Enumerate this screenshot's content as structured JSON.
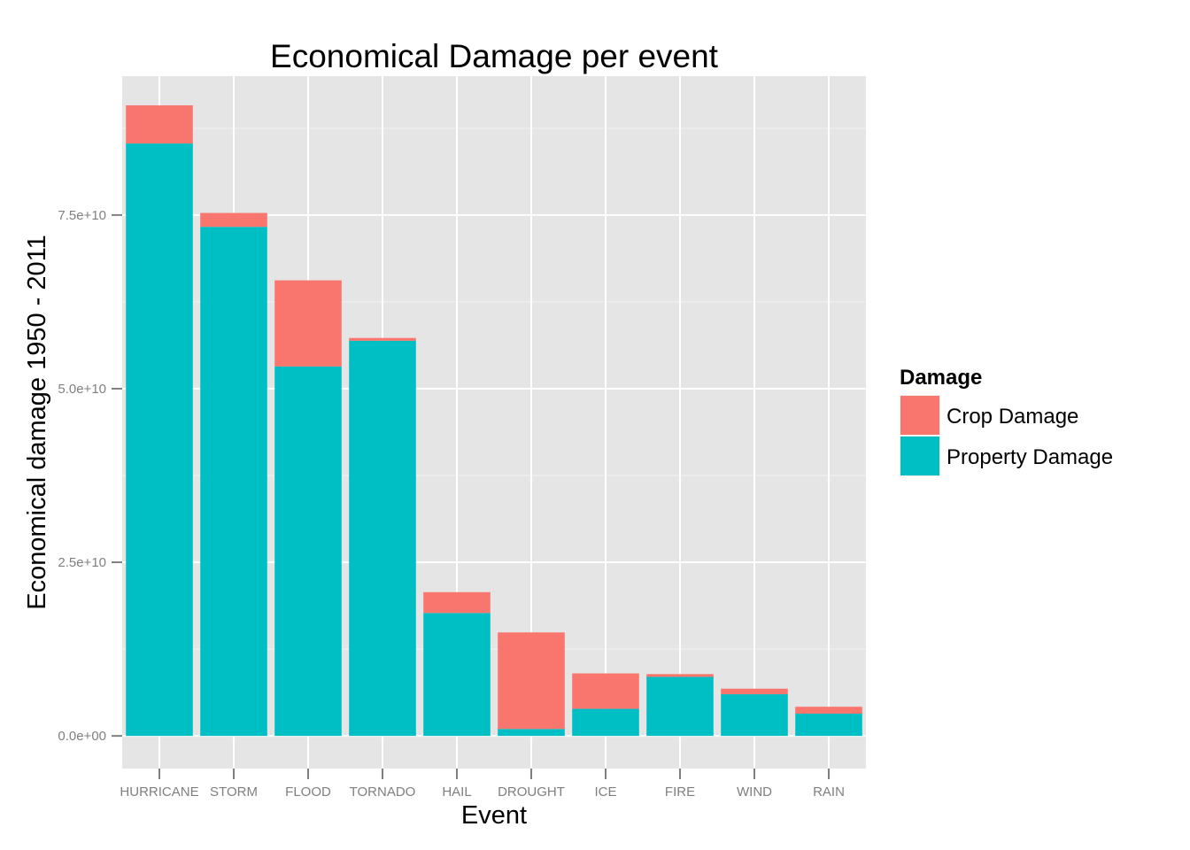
{
  "chart_data": {
    "type": "bar",
    "stacked": true,
    "title": "Economical Damage per event",
    "xlabel": "Event",
    "ylabel": "Economical damage 1950 - 2011",
    "categories": [
      "HURRICANE",
      "STORM",
      "FLOOD",
      "TORNADO",
      "HAIL",
      "DROUGHT",
      "ICE",
      "FIRE",
      "WIND",
      "RAIN"
    ],
    "series": [
      {
        "name": "Property Damage",
        "color": "#00bfc4",
        "values": [
          85300000000,
          73300000000,
          53200000000,
          56900000000,
          17700000000,
          1000000000,
          3900000000,
          8500000000,
          6000000000,
          3200000000
        ]
      },
      {
        "name": "Crop Damage",
        "color": "#f8766d",
        "values": [
          5500000000,
          2000000000,
          12400000000,
          400000000,
          3000000000,
          13900000000,
          5100000000,
          400000000,
          800000000,
          1000000000
        ]
      }
    ],
    "ylim": [
      -4700000000,
      95000000000
    ],
    "yticks": [
      0,
      25000000000,
      50000000000,
      75000000000
    ],
    "ytick_labels": [
      "0.0e+00",
      "2.5e+10",
      "5.0e+10",
      "7.5e+10"
    ],
    "grid": true,
    "legend": {
      "title": "Damage",
      "position": "right",
      "entries": [
        {
          "label": "Crop Damage",
          "color": "#f8766d"
        },
        {
          "label": "Property Damage",
          "color": "#00bfc4"
        }
      ]
    }
  }
}
